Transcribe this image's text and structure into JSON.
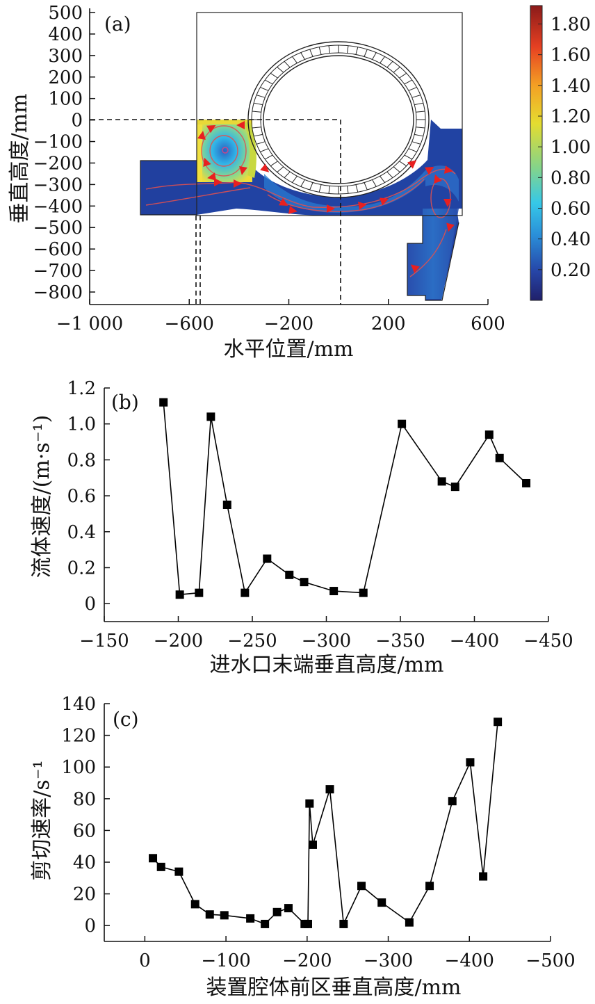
{
  "chart_data": [
    {
      "type": "heatmap",
      "panel_label": "(a)",
      "xlabel": "水平位置/mm",
      "ylabel": "垂直高度/mm",
      "xlim": [
        -1000,
        600
      ],
      "ylim": [
        -850,
        500
      ],
      "xticks": [
        -1000,
        -600,
        -200,
        200,
        600
      ],
      "xtick_labels": [
        "−1 000",
        "−600",
        "−200",
        "200",
        "600"
      ],
      "yticks": [
        500,
        400,
        300,
        200,
        100,
        0,
        -100,
        -200,
        -300,
        -400,
        -500,
        -600,
        -700,
        -800
      ],
      "ytick_labels": [
        "500",
        "400",
        "300",
        "200",
        "100",
        "0",
        "−100",
        "−200",
        "−300",
        "−400",
        "−500",
        "−600",
        "−700",
        "−800"
      ],
      "colorbar": {
        "min": 0,
        "max": 1.92,
        "ticks": [
          0.2,
          0.4,
          0.6,
          0.8,
          1.0,
          1.2,
          1.4,
          1.6,
          1.8
        ],
        "tick_labels": [
          "0.20",
          "0.40",
          "0.60",
          "0.80",
          "1.00",
          "1.20",
          "1.40",
          "1.60",
          "1.80"
        ],
        "colors": [
          "#20206a",
          "#2646a8",
          "#2a8ed8",
          "#36c8e8",
          "#84d48a",
          "#e4dc30",
          "#f4a024",
          "#e64022",
          "#8a1a1a"
        ]
      },
      "colors": {
        "background": "#203f9e",
        "high_speed": "#f0e040",
        "vortex": "#26b8e6",
        "streamline": "#e04040",
        "arrow": "#e82020",
        "outline": "#222222"
      }
    },
    {
      "type": "line",
      "panel_label": "(b)",
      "xlabel": "进水口末端垂直高度/mm",
      "ylabel": "流体速度/(m·s⁻¹)",
      "xlim": [
        -150,
        -450
      ],
      "ylim": [
        -0.1,
        1.2
      ],
      "xticks": [
        -150,
        -200,
        -250,
        -300,
        -350,
        -400,
        -450
      ],
      "xtick_labels": [
        "−150",
        "−200",
        "−250",
        "−300",
        "−350",
        "−400",
        "−450"
      ],
      "yticks": [
        0,
        0.2,
        0.4,
        0.6,
        0.8,
        1.0,
        1.2
      ],
      "ytick_labels": [
        "0",
        "0.2",
        "0.4",
        "0.6",
        "0.8",
        "1.0",
        "1.2"
      ],
      "x": [
        -190,
        -201,
        -214,
        -222,
        -233,
        -245,
        -260,
        -275,
        -285,
        -305,
        -325,
        -351,
        -378,
        -387,
        -410,
        -417,
        -435
      ],
      "y": [
        1.12,
        0.05,
        0.06,
        1.04,
        0.55,
        0.06,
        0.25,
        0.16,
        0.12,
        0.07,
        0.06,
        1.0,
        0.68,
        0.65,
        0.94,
        0.81,
        0.67
      ],
      "color": "#000000"
    },
    {
      "type": "line",
      "panel_label": "(c)",
      "xlabel": "装置腔体前区垂直高度/mm",
      "ylabel": "剪切速率/s⁻¹",
      "xlim": [
        50,
        -500
      ],
      "ylim": [
        -10,
        140
      ],
      "xticks": [
        0,
        -100,
        -200,
        -300,
        -400,
        -500
      ],
      "xtick_labels": [
        "0",
        "−100",
        "−200",
        "−300",
        "−400",
        "−500"
      ],
      "yticks": [
        0,
        20,
        40,
        60,
        80,
        100,
        120,
        140
      ],
      "ytick_labels": [
        "0",
        "20",
        "40",
        "60",
        "80",
        "100",
        "120",
        "140"
      ],
      "x": [
        -10,
        -20,
        -42,
        -62,
        -80,
        -98,
        -130,
        -148,
        -163,
        -177,
        -197,
        -201,
        -203,
        -207,
        -228,
        -245,
        -267,
        -292,
        -326,
        -351,
        -379,
        -401,
        -417,
        -435
      ],
      "y": [
        42.5,
        37,
        34,
        13.5,
        7,
        6.5,
        4.5,
        1,
        8.5,
        11,
        1,
        1,
        77,
        51,
        86,
        1,
        25,
        14.5,
        2,
        25,
        78.5,
        103,
        31,
        128.5
      ],
      "color": "#000000"
    }
  ]
}
